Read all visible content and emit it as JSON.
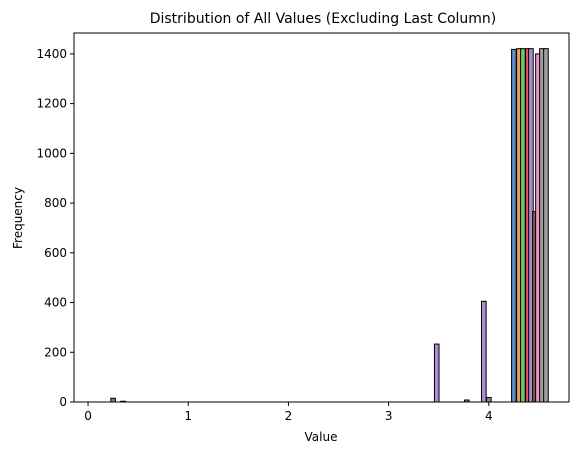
{
  "chart_data": {
    "type": "bar",
    "title": "Distribution of All Values (Excluding Last Column)",
    "xlabel": "Value",
    "ylabel": "Frequency",
    "xlim": [
      -0.14,
      4.8
    ],
    "ylim": [
      0,
      1484
    ],
    "xticks": [
      0,
      1,
      2,
      3,
      4
    ],
    "yticks": [
      0,
      200,
      400,
      600,
      800,
      1000,
      1200,
      1400
    ],
    "grid": false,
    "bar_width": 0.046,
    "edge_color": "#000000",
    "bars": [
      {
        "x": 0.25,
        "value": 15,
        "color": "#8172b2"
      },
      {
        "x": 0.35,
        "value": 3,
        "color": "#8172b2"
      },
      {
        "x": 3.48,
        "value": 233,
        "color": "#b18ad5"
      },
      {
        "x": 3.78,
        "value": 8,
        "color": "#8172b2"
      },
      {
        "x": 3.95,
        "value": 405,
        "color": "#b18ad5"
      },
      {
        "x": 4.0,
        "value": 18,
        "color": "#8c8c8c"
      },
      {
        "x": 4.25,
        "value": 1418,
        "color": "#5a8fc8"
      },
      {
        "x": 4.3,
        "value": 1421,
        "color": "#f0a04b"
      },
      {
        "x": 4.34,
        "value": 1421,
        "color": "#6fc56f"
      },
      {
        "x": 4.39,
        "value": 1421,
        "color": "#e05c5c"
      },
      {
        "x": 4.42,
        "value": 1421,
        "color": "#ab8bd0"
      },
      {
        "x": 4.46,
        "value": 766,
        "color": "#8c564b"
      },
      {
        "x": 4.49,
        "value": 1400,
        "color": "#e993c9"
      },
      {
        "x": 4.53,
        "value": 1421,
        "color": "#9f9f9f"
      },
      {
        "x": 4.57,
        "value": 1421,
        "color": "#9f9f9f"
      }
    ]
  }
}
